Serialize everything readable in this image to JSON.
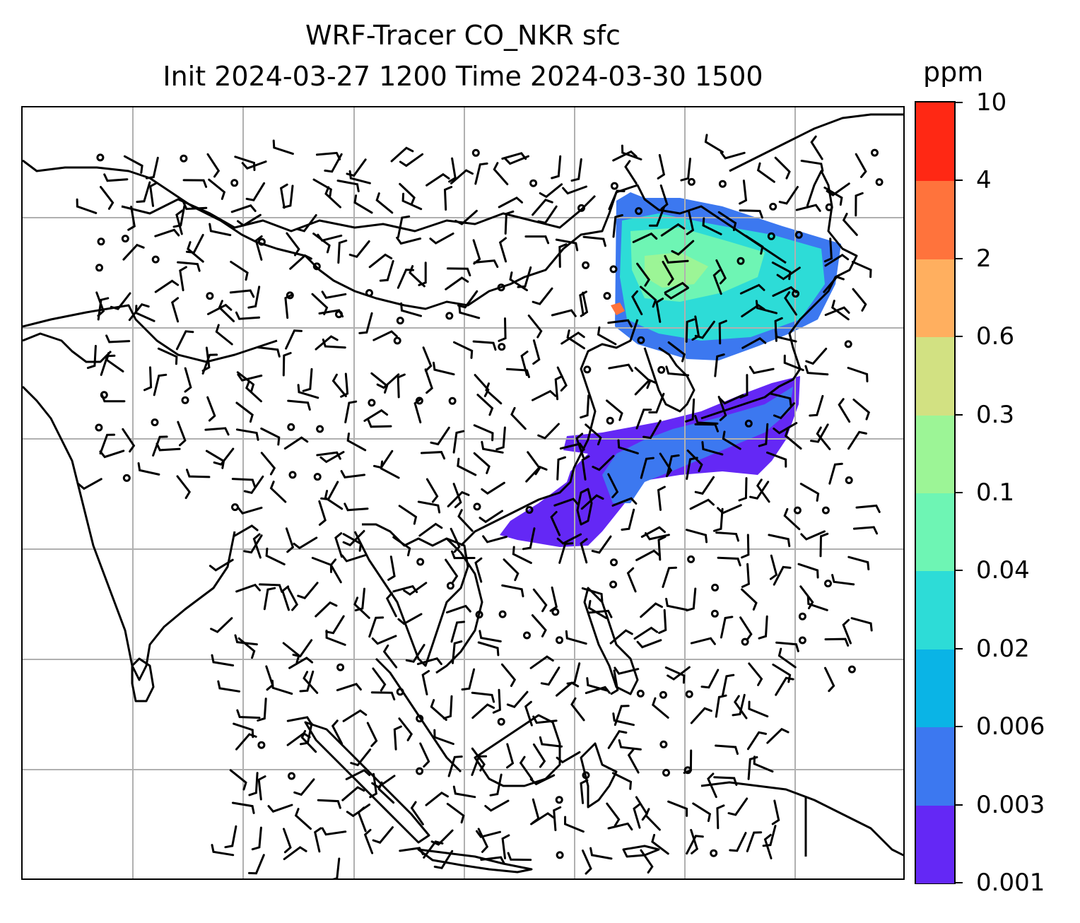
{
  "title": {
    "line1": "WRF-Tracer CO_NKR sfc",
    "line2": "Init 2024-03-27 1200 Time 2024-03-30 1500"
  },
  "map": {
    "field": "CO_NKR tracer concentration at surface",
    "overlay": "wind barbs",
    "gridlines": true,
    "gridline_color": "#b0b0b0",
    "coastline_color": "#000000"
  },
  "colorbar": {
    "unit": "ppm",
    "ticks": [
      "0.001",
      "0.003",
      "0.006",
      "0.02",
      "0.04",
      "0.1",
      "0.3",
      "0.6",
      "2",
      "4",
      "10"
    ],
    "colors": [
      "#6428f5",
      "#3c78f0",
      "#0ab4e6",
      "#2ddcd7",
      "#6ef5b4",
      "#9cf596",
      "#d2e182",
      "#ffaf5f",
      "#ff733c",
      "#ff2814"
    ]
  }
}
